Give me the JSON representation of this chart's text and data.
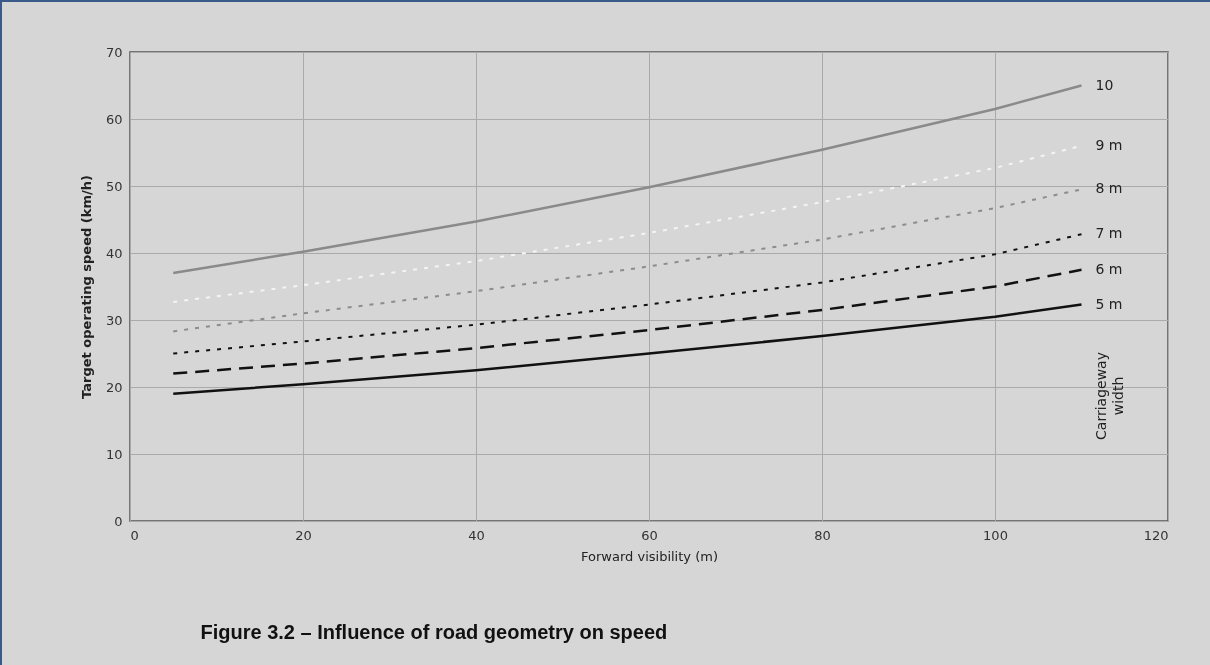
{
  "chart_data": {
    "type": "line",
    "title": "Figure 3.2 – Influence of road geometry on speed",
    "xlabel": "Forward visibility (m)",
    "ylabel": "Target operating speed (km/h)",
    "annotations": [
      "Carriageway width"
    ],
    "x": [
      5,
      20,
      40,
      60,
      80,
      100,
      110
    ],
    "series": [
      {
        "name": "10",
        "color": "#8a8a8a",
        "line_style": "solid",
        "values": [
          37,
          40.2,
          44.7,
          49.8,
          55.4,
          61.5,
          65
        ]
      },
      {
        "name": "9 m",
        "color": "#f4f4f4",
        "line_style": "dotted",
        "values": [
          32.7,
          35.2,
          38.8,
          43,
          47.6,
          52.7,
          56
        ]
      },
      {
        "name": "8 m",
        "color": "#8c8c8c",
        "line_style": "dotted",
        "values": [
          28.3,
          31,
          34.3,
          38,
          42,
          46.7,
          49.5
        ]
      },
      {
        "name": "7 m",
        "color": "#111111",
        "line_style": "dotted",
        "values": [
          25,
          26.8,
          29.3,
          32.3,
          35.6,
          39.8,
          42.8
        ]
      },
      {
        "name": "6 m",
        "color": "#111111",
        "line_style": "dashed",
        "values": [
          22,
          23.5,
          25.8,
          28.5,
          31.5,
          35,
          37.5
        ]
      },
      {
        "name": "5 m",
        "color": "#111111",
        "line_style": "solid",
        "values": [
          19,
          20.4,
          22.5,
          25,
          27.6,
          30.5,
          32.3
        ]
      }
    ],
    "xlim": [
      0,
      120
    ],
    "xticks": [
      0,
      20,
      40,
      60,
      80,
      100,
      120
    ],
    "ylim": [
      0,
      70
    ],
    "yticks": [
      0,
      10,
      20,
      30,
      40,
      50,
      60,
      70
    ],
    "grid": true,
    "marker": "none"
  }
}
